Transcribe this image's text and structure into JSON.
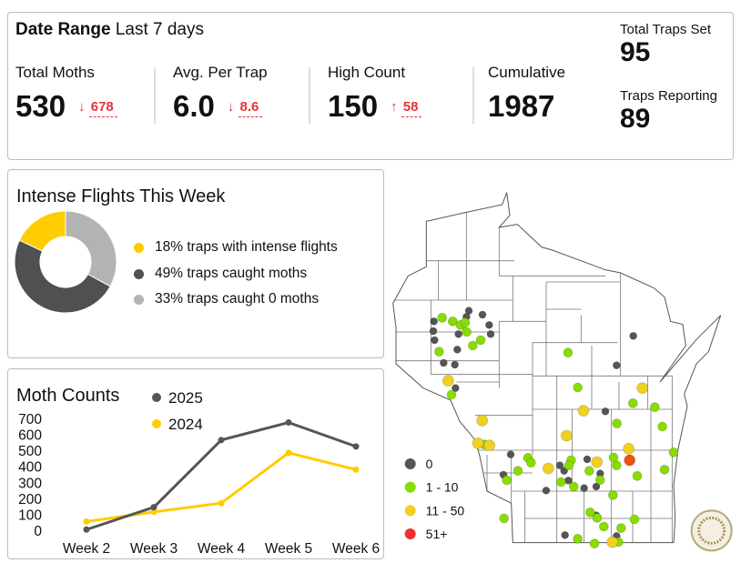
{
  "header": {
    "date_range_label": "Date Range",
    "date_range_value": "Last 7 days"
  },
  "kpis": [
    {
      "label": "Total Moths",
      "value": "530",
      "delta": "678",
      "direction": "down",
      "arrow": "↓"
    },
    {
      "label": "Avg. Per Trap",
      "value": "6.0",
      "delta": "8.6",
      "direction": "down",
      "arrow": "↓"
    },
    {
      "label": "High Count",
      "value": "150",
      "delta": "58",
      "direction": "up",
      "arrow": "↑"
    },
    {
      "label": "Cumulative",
      "value": "1987"
    }
  ],
  "traps": {
    "set_label": "Total Traps Set",
    "set_value": "95",
    "reporting_label": "Traps Reporting",
    "reporting_value": "89"
  },
  "flights": {
    "title": "Intense Flights This Week",
    "slices": [
      {
        "label": "18% traps with intense flights",
        "percent": 18,
        "color": "#ffcc00"
      },
      {
        "label": "49% traps caught moths",
        "percent": 49,
        "color": "#505050"
      },
      {
        "label": "33% traps caught 0 moths",
        "percent": 33,
        "color": "#b3b3b3"
      }
    ]
  },
  "chart_data": {
    "type": "line",
    "title": "Moth Counts",
    "categories": [
      "Week 2",
      "Week 3",
      "Week 4",
      "Week 5",
      "Week 6"
    ],
    "yticks": [
      "0",
      "100",
      "200",
      "300",
      "400",
      "500",
      "600",
      "700"
    ],
    "ylim": [
      0,
      700
    ],
    "legend": "top",
    "series": [
      {
        "name": "2025",
        "color": "#555555",
        "values": [
          10,
          150,
          570,
          680,
          530
        ]
      },
      {
        "name": "2024",
        "color": "#ffcc00",
        "values": [
          60,
          120,
          175,
          490,
          385
        ]
      }
    ]
  },
  "map": {
    "legend": [
      {
        "label": "0",
        "color": "#555555"
      },
      {
        "label": "1 - 10",
        "color": "#88dd00"
      },
      {
        "label": "11 - 50",
        "color": "#f0d020"
      },
      {
        "label": "51+",
        "color": "#f03030"
      }
    ],
    "seal": "Wisconsin Department of Agriculture, Trade and Consumer Protection"
  }
}
